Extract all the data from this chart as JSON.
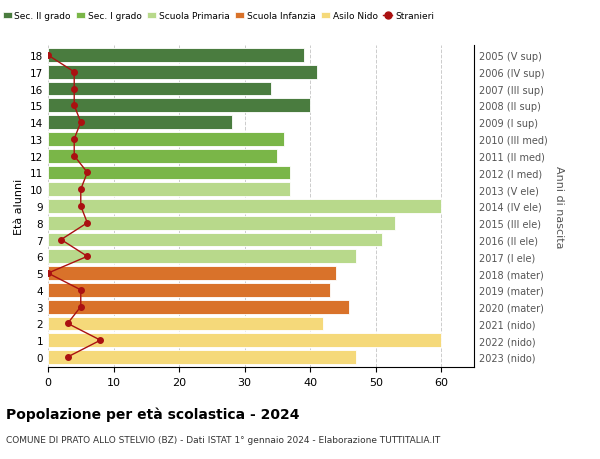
{
  "ages": [
    18,
    17,
    16,
    15,
    14,
    13,
    12,
    11,
    10,
    9,
    8,
    7,
    6,
    5,
    4,
    3,
    2,
    1,
    0
  ],
  "right_labels": [
    "2005 (V sup)",
    "2006 (IV sup)",
    "2007 (III sup)",
    "2008 (II sup)",
    "2009 (I sup)",
    "2010 (III med)",
    "2011 (II med)",
    "2012 (I med)",
    "2013 (V ele)",
    "2014 (IV ele)",
    "2015 (III ele)",
    "2016 (II ele)",
    "2017 (I ele)",
    "2018 (mater)",
    "2019 (mater)",
    "2020 (mater)",
    "2021 (nido)",
    "2022 (nido)",
    "2023 (nido)"
  ],
  "bar_values": [
    39,
    41,
    34,
    40,
    28,
    36,
    35,
    37,
    37,
    60,
    53,
    51,
    47,
    44,
    43,
    46,
    42,
    60,
    47
  ],
  "bar_colors": [
    "#4a7c3f",
    "#4a7c3f",
    "#4a7c3f",
    "#4a7c3f",
    "#4a7c3f",
    "#7ab648",
    "#7ab648",
    "#7ab648",
    "#b8d98b",
    "#b8d98b",
    "#b8d98b",
    "#b8d98b",
    "#b8d98b",
    "#d9722a",
    "#d9722a",
    "#d9722a",
    "#f5d97a",
    "#f5d97a",
    "#f5d97a"
  ],
  "stranieri_values": [
    0,
    4,
    4,
    4,
    5,
    4,
    4,
    6,
    5,
    5,
    6,
    2,
    6,
    0,
    5,
    5,
    3,
    8,
    3
  ],
  "stranieri_color": "#aa1111",
  "legend_items": [
    {
      "label": "Sec. II grado",
      "color": "#4a7c3f"
    },
    {
      "label": "Sec. I grado",
      "color": "#7ab648"
    },
    {
      "label": "Scuola Primaria",
      "color": "#b8d98b"
    },
    {
      "label": "Scuola Infanzia",
      "color": "#d9722a"
    },
    {
      "label": "Asilo Nido",
      "color": "#f5d97a"
    },
    {
      "label": "Stranieri",
      "color": "#aa1111"
    }
  ],
  "ylabel": "Età alunni",
  "ylabel_right": "Anni di nascita",
  "xlim": [
    0,
    65
  ],
  "xticks": [
    0,
    10,
    20,
    30,
    40,
    50,
    60
  ],
  "title": "Popolazione per età scolastica - 2024",
  "subtitle": "COMUNE DI PRATO ALLO STELVIO (BZ) - Dati ISTAT 1° gennaio 2024 - Elaborazione TUTTITALIA.IT",
  "bg_color": "#ffffff",
  "bar_height": 0.82,
  "grid_color": "#cccccc"
}
